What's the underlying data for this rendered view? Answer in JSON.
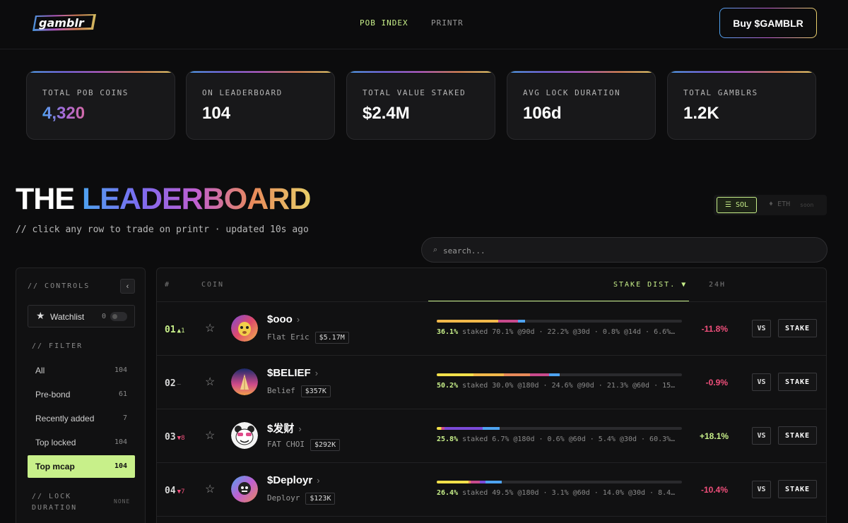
{
  "header": {
    "logo_text": "gamblr",
    "nav": [
      {
        "label": "POB INDEX",
        "active": true
      },
      {
        "label": "PRINTR",
        "active": false
      }
    ],
    "buy_label": "Buy $GAMBLR"
  },
  "stats": [
    {
      "label": "TOTAL POB COINS",
      "value": "4,320"
    },
    {
      "label": "ON LEADERBOARD",
      "value": "104"
    },
    {
      "label": "TOTAL VALUE STAKED",
      "value": "$2.4M"
    },
    {
      "label": "AVG LOCK DURATION",
      "value": "106d"
    },
    {
      "label": "TOTAL GAMBLRS",
      "value": "1.2K"
    }
  ],
  "leaderboard": {
    "title_part1": "THE",
    "title_part2": "LEADERBOARD",
    "subtitle": "// click any row to trade on printr · updated 10s ago",
    "chains": {
      "sol": "SOL",
      "eth": "ETH",
      "eth_note": "soon"
    },
    "search_placeholder": "search..."
  },
  "sidebar": {
    "controls_label": "// CONTROLS",
    "collapse_glyph": "‹",
    "watchlist_label": "Watchlist",
    "watchlist_count": "0",
    "filter_label": "// FILTER",
    "filters": [
      {
        "label": "All",
        "count": "104"
      },
      {
        "label": "Pre-bond",
        "count": "61"
      },
      {
        "label": "Recently added",
        "count": "7"
      },
      {
        "label": "Top locked",
        "count": "104"
      },
      {
        "label": "Top mcap",
        "count": "104",
        "active": true
      }
    ],
    "lock_label": "// LOCK DURATION",
    "lock_value": "NONE"
  },
  "table": {
    "headers": {
      "rank": "#",
      "coin": "COIN",
      "stake": "STAKE DIST. ▼",
      "change": "24H"
    },
    "vs_label": "VS",
    "stake_label": "STAKE",
    "rows": [
      {
        "rank": "01",
        "delta": "▲1",
        "delta_dir": "up",
        "name": "$ooo",
        "sub": "Flat Eric",
        "mcap": "$5.17M",
        "staked_pct": "36.1%",
        "dist_text": "staked 70.1% @90d · 22.2% @30d · 0.8% @14d · 6.6%…",
        "bar": [
          {
            "pct": 25.2,
            "color": "#f2b84a"
          },
          {
            "pct": 8.0,
            "color": "#c84a8c"
          },
          {
            "pct": 2.9,
            "color": "#4ea3f0"
          }
        ],
        "change": "-11.8%",
        "change_dir": "neg"
      },
      {
        "rank": "02",
        "delta": "–",
        "delta_dir": "flat",
        "name": "$BELIEF",
        "sub": "Belief",
        "mcap": "$357K",
        "staked_pct": "50.2%",
        "dist_text": "staked 30.0% @180d · 24.6% @90d · 21.3% @60d · 15…",
        "bar": [
          {
            "pct": 15.1,
            "color": "#f2e04a"
          },
          {
            "pct": 12.3,
            "color": "#f2b84a"
          },
          {
            "pct": 10.7,
            "color": "#e88a5a"
          },
          {
            "pct": 7.8,
            "color": "#c84a8c"
          },
          {
            "pct": 4.3,
            "color": "#4ea3f0"
          }
        ],
        "change": "-0.9%",
        "change_dir": "neg"
      },
      {
        "rank": "03",
        "delta": "▼8",
        "delta_dir": "down",
        "name": "$发财",
        "sub": "FAT CHOI",
        "mcap": "$292K",
        "staked_pct": "25.8%",
        "dist_text": "staked 6.7% @180d · 0.6% @60d · 5.4% @30d · 60.3%…",
        "bar": [
          {
            "pct": 1.7,
            "color": "#f2e04a"
          },
          {
            "pct": 0.2,
            "color": "#e88a5a"
          },
          {
            "pct": 1.4,
            "color": "#c84a8c"
          },
          {
            "pct": 15.5,
            "color": "#7b4ad8"
          },
          {
            "pct": 7.0,
            "color": "#4ea3f0"
          }
        ],
        "change": "+18.1%",
        "change_dir": "pos"
      },
      {
        "rank": "04",
        "delta": "▼7",
        "delta_dir": "down",
        "name": "$Deployr",
        "sub": "Deployr",
        "mcap": "$123K",
        "staked_pct": "26.4%",
        "dist_text": "staked 49.5% @180d · 3.1% @60d · 14.0% @30d · 8.4…",
        "bar": [
          {
            "pct": 13.1,
            "color": "#f2e04a"
          },
          {
            "pct": 0.8,
            "color": "#e88a5a"
          },
          {
            "pct": 3.7,
            "color": "#c84a8c"
          },
          {
            "pct": 2.2,
            "color": "#7b4ad8"
          },
          {
            "pct": 6.6,
            "color": "#4ea3f0"
          }
        ],
        "change": "-10.4%",
        "change_dir": "neg"
      }
    ]
  }
}
